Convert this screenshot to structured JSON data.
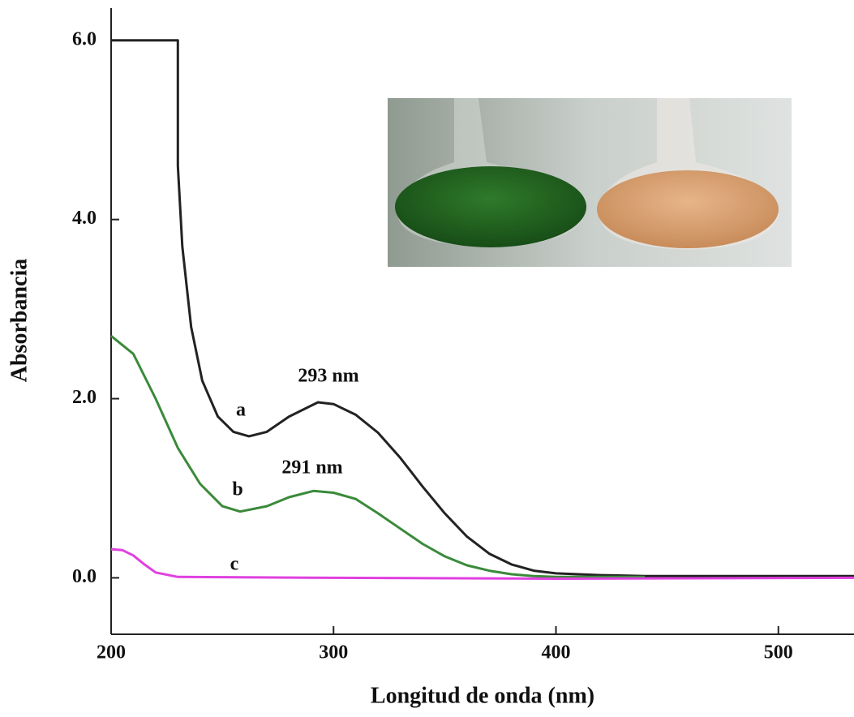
{
  "chart_data": {
    "type": "line",
    "x_label": "Longitud de onda (nm)",
    "y_label": "Absorbancia",
    "xlim": [
      200,
      534
    ],
    "ylim": [
      -0.63,
      6.36
    ],
    "xticks": [
      200,
      300,
      400,
      500
    ],
    "yticks": [
      {
        "value": 0,
        "label": "0.0"
      },
      {
        "value": 2,
        "label": "2.0"
      },
      {
        "value": 4,
        "label": "4.0"
      },
      {
        "value": 6,
        "label": "6.0"
      }
    ],
    "series": [
      {
        "name": "a",
        "color": "#222222",
        "x": [
          200,
          230,
          230,
          232,
          236,
          241,
          248,
          255,
          262,
          270,
          280,
          293,
          300,
          310,
          320,
          330,
          340,
          350,
          360,
          370,
          380,
          390,
          400,
          420,
          440,
          480,
          534
        ],
        "values": [
          6.0,
          6.0,
          4.6,
          3.7,
          2.8,
          2.2,
          1.8,
          1.63,
          1.58,
          1.63,
          1.8,
          1.96,
          1.94,
          1.82,
          1.62,
          1.34,
          1.02,
          0.72,
          0.46,
          0.27,
          0.15,
          0.08,
          0.05,
          0.03,
          0.02,
          0.02,
          0.02
        ]
      },
      {
        "name": "b",
        "color": "#3a8a3a",
        "x": [
          200,
          210,
          220,
          230,
          240,
          250,
          258,
          270,
          280,
          291,
          300,
          310,
          320,
          330,
          340,
          350,
          360,
          370,
          380,
          390,
          400,
          440
        ],
        "values": [
          2.7,
          2.5,
          2.0,
          1.45,
          1.05,
          0.8,
          0.74,
          0.8,
          0.9,
          0.97,
          0.95,
          0.88,
          0.72,
          0.55,
          0.38,
          0.24,
          0.14,
          0.08,
          0.04,
          0.02,
          0.01,
          0.01
        ]
      },
      {
        "name": "c",
        "color": "#e040e0",
        "x": [
          200,
          205,
          210,
          215,
          220,
          230,
          300,
          400,
          534
        ],
        "values": [
          0.32,
          0.31,
          0.25,
          0.15,
          0.06,
          0.01,
          0.0,
          -0.01,
          0.0
        ]
      }
    ],
    "annotations": [
      "293 nm",
      "291 nm"
    ]
  }
}
